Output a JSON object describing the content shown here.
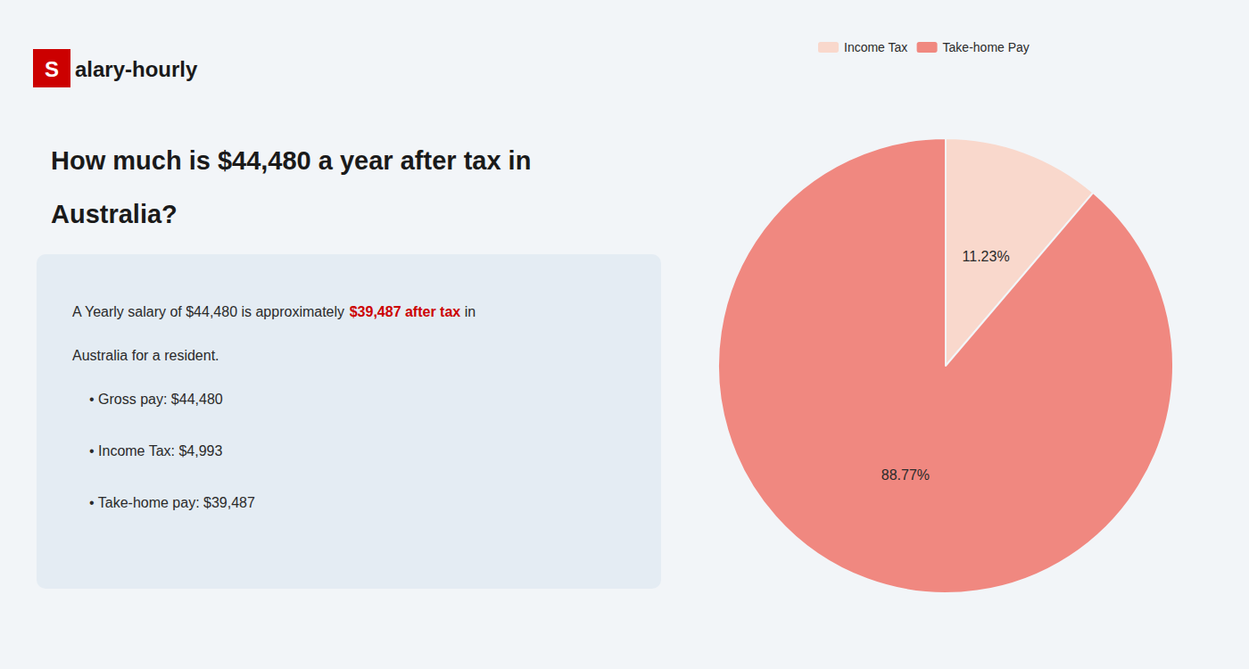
{
  "chart_data": {
    "type": "pie",
    "title": "How much is $44,480 a year after tax in\nAustralia?",
    "annotations": [
      "S",
      "alary-hourly",
      "A Yearly salary of $44,480 is approximately ",
      "$39,487 after tax",
      " in",
      "Australia for a resident.",
      "• Gross pay: $44,480",
      "• Income Tax: $4,993",
      "• Take-home pay: $39,487"
    ],
    "categories": [
      "Income Tax",
      "Take-home Pay"
    ],
    "values": [
      11.23,
      88.77
    ],
    "value_labels": [
      "11.23%",
      "88.77%"
    ],
    "colors": [
      "#f9d8cc",
      "#f08880"
    ],
    "data_labels": true,
    "legend": "top"
  }
}
